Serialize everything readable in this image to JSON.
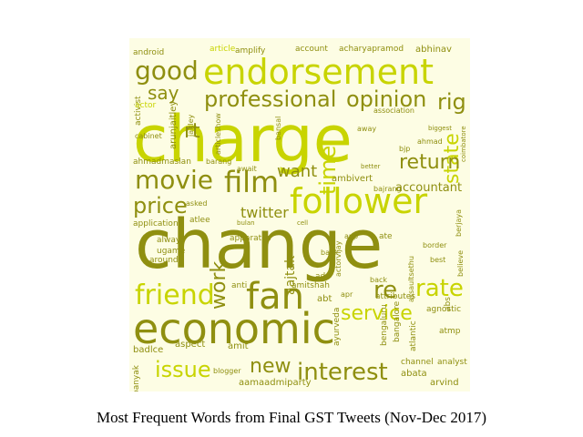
{
  "colors": {
    "light": "#c8d400",
    "dark": "#8f8f10",
    "pale": "#d9e060",
    "background": "#fdfde4"
  },
  "caption": "Most Frequent Words from Final GST Tweets (Nov-Dec 2017)",
  "words": {
    "charge": "charge",
    "change": "change",
    "economic": "economic",
    "endorsement": "endorsement",
    "follower": "follower",
    "fan": "fan",
    "friend": "friend",
    "film": "film",
    "movie": "movie",
    "professional": "professional",
    "opinion": "opinion",
    "interest": "interest",
    "new": "new",
    "service": "service",
    "issue": "issue",
    "good": "good",
    "say": "say",
    "rig": "rig",
    "state": "state",
    "return": "return",
    "rate": "rate",
    "re": "re",
    "price": "price",
    "work": "work",
    "time": "time",
    "twitter": "twitter",
    "want": "want",
    "accountant": "accountant",
    "rt": "rt",
    "aaj_tak": "aajtak",
    "ambivert": "ambivert",
    "application": "application",
    "android": "android",
    "article": "article",
    "amplify": "amplify",
    "account": "account",
    "acharyapramod": "acharyapramod",
    "abhinav": "abhinav",
    "activist": "activist",
    "actor": "actor",
    "arunjaitley": "arunjaitley",
    "ahmadmaslan": "ahmadmaslan",
    "cabinet": "cabinet",
    "articleshow": "articleshow",
    "bangalore": "bangalore",
    "analyst": "analyst",
    "arvind": "arvind",
    "abata": "abata",
    "aamaadmiparty": "aamaadmiparty",
    "blogger": "blogger",
    "badlce": "badlce",
    "aspect": "aspect",
    "amit": "amit",
    "banyak": "banyak",
    "attributes": "attributes",
    "agnostic": "agnostic",
    "ayurveda": "ayurveda",
    "atlantic": "atlantic",
    "atmp": "atmp",
    "channel": "channel",
    "bengaluru": "bengaluru",
    "amitshah": "amitshah",
    "abt": "abt",
    "apr": "apr",
    "ada": "ada",
    "anti": "anti",
    "back": "back",
    "bank": "bank",
    "border": "border",
    "best": "best",
    "believe": "believe",
    "assaultsethu": "assaultsethu",
    "apparatus": "apparatus",
    "always": "always",
    "ugame": "ugame",
    "around": "around",
    "atlee": "atlee",
    "asked": "asked",
    "actorvijay": "actorvijay",
    "berjaya": "berjaya",
    "bajrang": "bajrang",
    "await": "await",
    "ahmad": "ahmad",
    "bjp": "bjp",
    "biggest": "biggest",
    "coimbatore": "coimbatore",
    "association": "association",
    "jaitley": "jaitley",
    "bansal": "bansal",
    "away": "away",
    "better": "better",
    "cell": "cell",
    "bulan": "bulan",
    "barang": "barang",
    "ate": "ate",
    "app": "app",
    "abs": "abs"
  }
}
